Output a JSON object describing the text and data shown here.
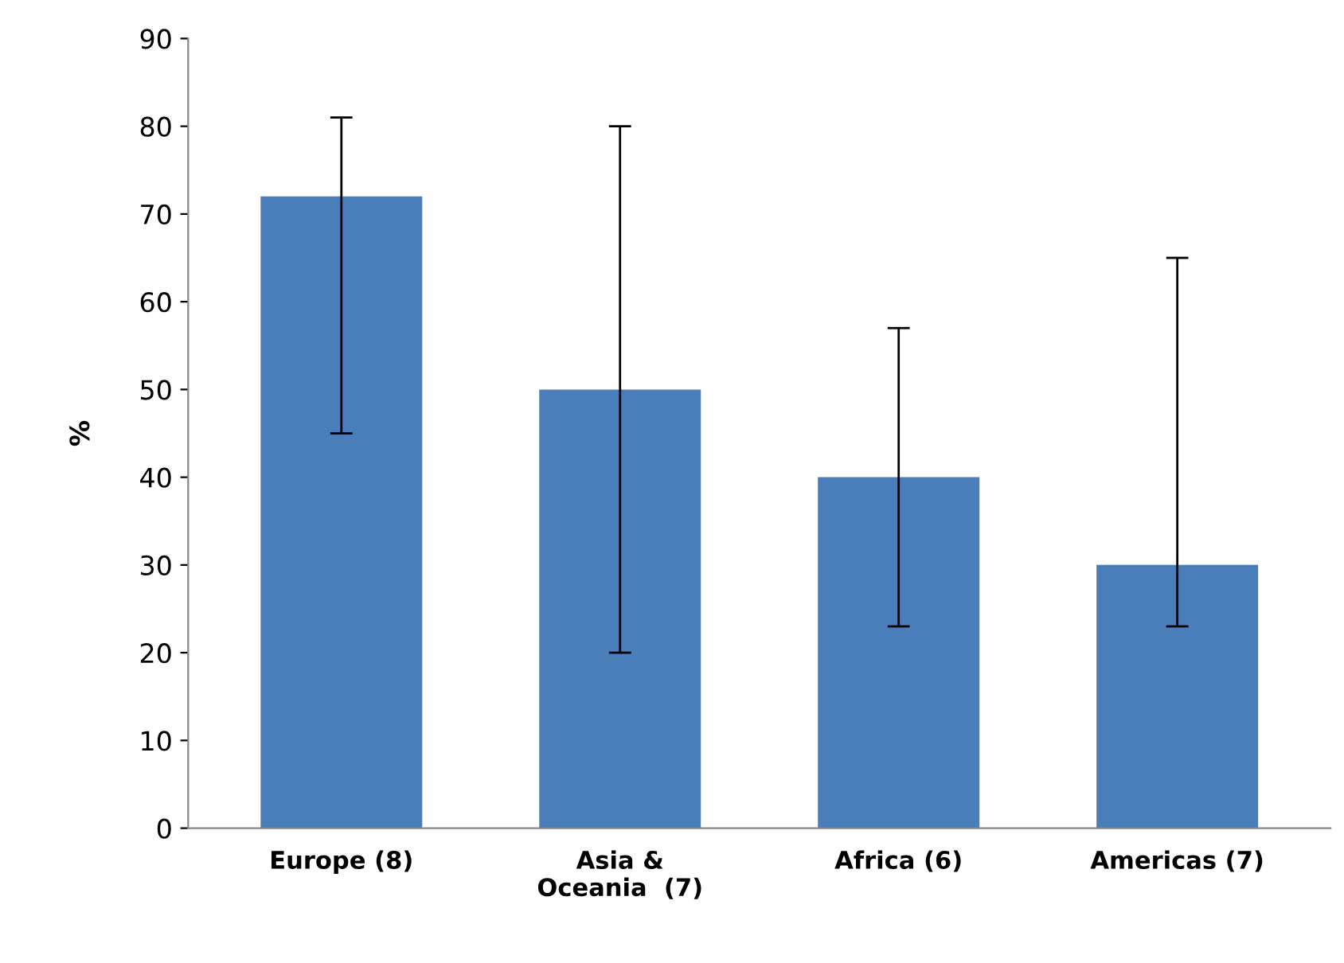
{
  "chart_data": {
    "type": "bar",
    "ylabel": "%",
    "categories": [
      "Europe (8)",
      "Asia &\nOceania  (7)",
      "Africa (6)",
      "Americas (7)"
    ],
    "values": [
      72,
      50,
      40,
      30
    ],
    "errors": [
      [
        45,
        81
      ],
      [
        20,
        80
      ],
      [
        23,
        57
      ],
      [
        23,
        65
      ]
    ],
    "color": "#4a7ebb",
    "ylim": [
      0,
      90
    ],
    "yticks": [
      0,
      10,
      20,
      30,
      40,
      50,
      60,
      70,
      80,
      90
    ],
    "grid": false
  }
}
